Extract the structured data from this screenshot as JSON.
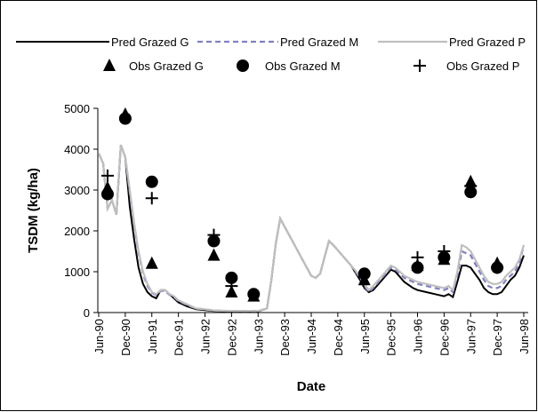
{
  "chart_data": {
    "type": "line",
    "x_label": "Date",
    "y_label": "TSDM (kg/ha)",
    "xlim": [
      "1990-06",
      "1998-06"
    ],
    "ylim": [
      0,
      5000
    ],
    "yticks": [
      0,
      1000,
      2000,
      3000,
      4000,
      5000
    ],
    "xticks": [
      {
        "value": "1990-06",
        "label": "Jun-90"
      },
      {
        "value": "1990-12",
        "label": "Dec-90"
      },
      {
        "value": "1991-06",
        "label": "Jun-91"
      },
      {
        "value": "1991-12",
        "label": "Dec-91"
      },
      {
        "value": "1992-06",
        "label": "Jun-92"
      },
      {
        "value": "1992-12",
        "label": "Dec-92"
      },
      {
        "value": "1993-06",
        "label": "Jun-93"
      },
      {
        "value": "1993-12",
        "label": "Dec-93"
      },
      {
        "value": "1994-06",
        "label": "Jun-94"
      },
      {
        "value": "1994-12",
        "label": "Dec-94"
      },
      {
        "value": "1995-06",
        "label": "Jun-95"
      },
      {
        "value": "1995-12",
        "label": "Dec-95"
      },
      {
        "value": "1996-06",
        "label": "Jun-96"
      },
      {
        "value": "1996-12",
        "label": "Dec-96"
      },
      {
        "value": "1997-06",
        "label": "Jun-97"
      },
      {
        "value": "1997-12",
        "label": "Dec-97"
      },
      {
        "value": "1998-06",
        "label": "Jun-98"
      }
    ],
    "x": [
      "1990-06",
      "1990-07",
      "1990-08",
      "1990-09",
      "1990-10",
      "1990-11",
      "1990-12",
      "1991-01",
      "1991-02",
      "1991-03",
      "1991-04",
      "1991-05",
      "1991-06",
      "1991-07",
      "1991-08",
      "1991-09",
      "1991-10",
      "1991-11",
      "1991-12",
      "1992-02",
      "1992-04",
      "1992-06",
      "1992-08",
      "1992-12",
      "1993-06",
      "1993-08",
      "1993-09",
      "1993-10",
      "1993-11",
      "1993-12",
      "1994-02",
      "1994-04",
      "1994-06",
      "1994-07",
      "1994-08",
      "1994-09",
      "1994-10",
      "1994-11",
      "1995-01",
      "1995-03",
      "1995-05",
      "1995-06",
      "1995-07",
      "1995-08",
      "1995-10",
      "1995-12",
      "1996-01",
      "1996-03",
      "1996-05",
      "1996-06",
      "1996-08",
      "1996-10",
      "1996-12",
      "1997-01",
      "1997-02",
      "1997-03",
      "1997-04",
      "1997-05",
      "1997-06",
      "1997-07",
      "1997-08",
      "1997-09",
      "1997-10",
      "1997-11",
      "1997-12",
      "1998-01",
      "1998-02",
      "1998-03",
      "1998-04",
      "1998-05",
      "1998-06"
    ],
    "series": [
      {
        "name": "Pred Grazed G",
        "kind": "line",
        "color": "#000000",
        "dash": "none",
        "values": [
          3900,
          3650,
          2550,
          2750,
          2400,
          4100,
          3800,
          2600,
          1800,
          1100,
          700,
          500,
          400,
          350,
          550,
          550,
          450,
          350,
          250,
          150,
          80,
          60,
          40,
          30,
          30,
          100,
          800,
          1700,
          2300,
          2100,
          1700,
          1300,
          900,
          850,
          950,
          1350,
          1750,
          1650,
          1400,
          1150,
          800,
          600,
          500,
          550,
          800,
          1050,
          1000,
          750,
          600,
          550,
          500,
          450,
          400,
          450,
          380,
          750,
          1150,
          1150,
          1100,
          950,
          800,
          600,
          500,
          450,
          450,
          500,
          650,
          800,
          900,
          1100,
          1400
        ]
      },
      {
        "name": "Pred Grazed M",
        "kind": "line",
        "color": "#8080c0",
        "dash": "6 4",
        "values": [
          3900,
          3650,
          2550,
          2750,
          2400,
          4100,
          3800,
          2950,
          2150,
          1450,
          950,
          650,
          480,
          430,
          530,
          530,
          430,
          380,
          280,
          180,
          100,
          80,
          50,
          40,
          40,
          100,
          800,
          1700,
          2300,
          2100,
          1700,
          1300,
          900,
          850,
          950,
          1350,
          1750,
          1650,
          1400,
          1150,
          850,
          650,
          500,
          600,
          850,
          1100,
          1050,
          850,
          750,
          700,
          650,
          600,
          550,
          600,
          500,
          900,
          1500,
          1450,
          1400,
          1200,
          1000,
          800,
          650,
          600,
          600,
          650,
          800,
          900,
          1000,
          1200,
          1650
        ]
      },
      {
        "name": "Pred Grazed P",
        "kind": "line",
        "color": "#bfbfbf",
        "dash": "none",
        "values": [
          3900,
          3650,
          2550,
          2750,
          2400,
          4100,
          3800,
          3000,
          2200,
          1500,
          1000,
          700,
          500,
          450,
          550,
          550,
          450,
          400,
          300,
          200,
          100,
          80,
          50,
          40,
          40,
          100,
          800,
          1700,
          2300,
          2100,
          1700,
          1300,
          900,
          850,
          950,
          1350,
          1750,
          1650,
          1400,
          1150,
          900,
          700,
          550,
          650,
          900,
          1150,
          1100,
          900,
          800,
          750,
          700,
          650,
          600,
          650,
          550,
          1000,
          1650,
          1600,
          1500,
          1300,
          1100,
          900,
          750,
          700,
          700,
          750,
          900,
          1000,
          1100,
          1300,
          1650
        ]
      },
      {
        "name": "Obs Grazed G",
        "kind": "triangle",
        "color": "#000000",
        "x": [
          "1990-08",
          "1990-12",
          "1991-06",
          "1992-08",
          "1992-12",
          "1993-05",
          "1995-06",
          "1996-06",
          "1996-12",
          "1997-06",
          "1997-12"
        ],
        "values": [
          3050,
          4850,
          1200,
          1400,
          500,
          400,
          800,
          1150,
          1300,
          3200,
          1200
        ]
      },
      {
        "name": "Obs Grazed M",
        "kind": "circle",
        "color": "#000000",
        "x": [
          "1990-08",
          "1990-12",
          "1991-06",
          "1992-08",
          "1992-12",
          "1993-05",
          "1995-06",
          "1996-06",
          "1996-12",
          "1997-06",
          "1997-12"
        ],
        "values": [
          2900,
          4750,
          3200,
          1750,
          850,
          450,
          950,
          1100,
          1350,
          2950,
          1100
        ]
      },
      {
        "name": "Obs Grazed P",
        "kind": "cross",
        "color": "#000000",
        "x": [
          "1990-08",
          "1991-06",
          "1992-08",
          "1992-12",
          "1996-06",
          "1996-12",
          "1997-06",
          "1997-12"
        ],
        "values": [
          3350,
          2800,
          1900,
          650,
          1350,
          1500,
          3100,
          1100
        ]
      }
    ]
  }
}
